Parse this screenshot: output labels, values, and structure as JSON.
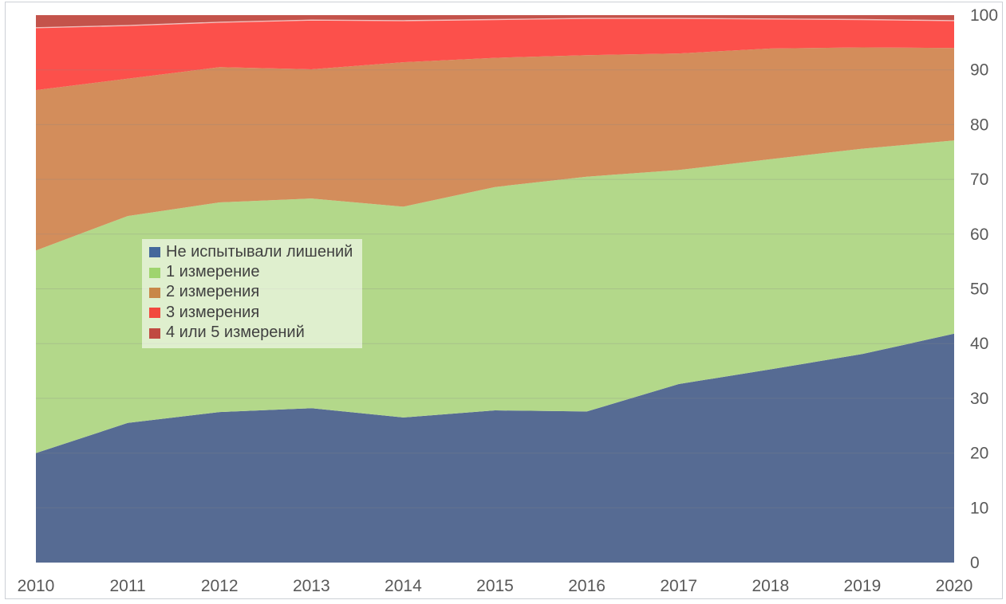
{
  "chart_data": {
    "type": "area",
    "stacked": true,
    "title": "",
    "xlabel": "",
    "ylabel": "",
    "x": [
      "2010",
      "2011",
      "2012",
      "2013",
      "2014",
      "2015",
      "2016",
      "2017",
      "2018",
      "2019",
      "2020"
    ],
    "series": [
      {
        "id": "no-deprivation",
        "name": "Не испытывали лишений",
        "color": "#566b93",
        "legend_color": "#44689b",
        "values": [
          20.0,
          25.5,
          27.5,
          28.2,
          26.5,
          27.8,
          27.6,
          32.6,
          35.3,
          38.1,
          41.8
        ]
      },
      {
        "id": "one-dimension",
        "name": "1 измерение",
        "color": "#b3d88a",
        "legend_color": "#9fd46e",
        "values": [
          37.0,
          37.8,
          38.3,
          38.3,
          38.5,
          40.8,
          42.9,
          39.1,
          38.4,
          37.5,
          35.3
        ]
      },
      {
        "id": "two-dimensions",
        "name": "2 измерения",
        "color": "#d38d5b",
        "legend_color": "#c88748",
        "values": [
          29.3,
          25.1,
          24.7,
          23.6,
          26.4,
          23.6,
          22.2,
          21.3,
          20.2,
          18.5,
          16.9
        ]
      },
      {
        "id": "three-dimensions",
        "name": "3 измерения",
        "color": "#fc504b",
        "legend_color": "#f2483e",
        "values": [
          11.4,
          9.7,
          8.2,
          9.0,
          7.6,
          7.0,
          6.7,
          6.4,
          5.4,
          5.1,
          5.0
        ]
      },
      {
        "id": "four-five-dimensions",
        "name": "4 или 5 измерений",
        "color": "#c4534b",
        "legend_color": "#c04a41",
        "values": [
          2.3,
          1.9,
          1.3,
          0.9,
          1.0,
          0.8,
          0.6,
          0.6,
          0.7,
          0.8,
          1.0
        ]
      }
    ],
    "ylim": [
      0,
      100
    ],
    "y_ticks": [
      0,
      10,
      20,
      30,
      40,
      50,
      60,
      70,
      80,
      90,
      100
    ],
    "grid": "horizontal",
    "legend_position": "overlay-left-middle",
    "axis_label_color": "#595959",
    "gridline_color": "#8a8a8a"
  }
}
